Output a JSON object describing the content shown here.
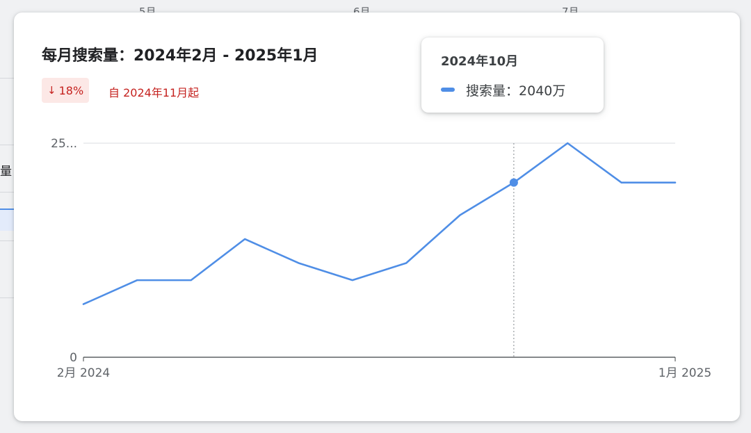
{
  "background": {
    "tick_labels": [
      "5月",
      "6月",
      "7月"
    ],
    "side_label": "量"
  },
  "card": {
    "title": "每月搜索量：2024年2月 - 2025年1月",
    "change": {
      "direction": "down",
      "arrow_icon": "arrow-down-icon",
      "percent": "18%",
      "since_text": "自 2024年11月起",
      "color": "#c5221f",
      "background": "#fce8e6"
    }
  },
  "tooltip": {
    "title": "2024年10月",
    "series_label": "搜索量",
    "separator": "：",
    "value_text": "2040万"
  },
  "colors": {
    "line": "#4f8ee6",
    "axis": "#3c4043",
    "grid": "#dadce0",
    "text": "#5f6368"
  },
  "chart_data": {
    "type": "line",
    "title": "每月搜索量：2024年2月 - 2025年1月",
    "x": [
      "2024-02",
      "2024-03",
      "2024-04",
      "2024-05",
      "2024-06",
      "2024-07",
      "2024-08",
      "2024-09",
      "2024-10",
      "2024-11",
      "2024-12",
      "2025-01"
    ],
    "x_tick_labels": [
      {
        "text": "2月 2024",
        "at": "2024-02"
      },
      {
        "text": "1月 2025",
        "at": "2025-01"
      }
    ],
    "y_tick_labels": [
      "0",
      "25..."
    ],
    "y_ticks": [
      0,
      25
    ],
    "ylim": [
      0,
      25
    ],
    "y_unit": "百万",
    "series": [
      {
        "name": "搜索量",
        "values": [
          6.2,
          9.0,
          9.0,
          13.8,
          11.0,
          9.0,
          11.0,
          16.6,
          20.4,
          25.0,
          20.4,
          20.4
        ]
      }
    ],
    "highlight": {
      "x": "2024-10",
      "value": 20.4
    },
    "grid": true,
    "legend": "none"
  }
}
